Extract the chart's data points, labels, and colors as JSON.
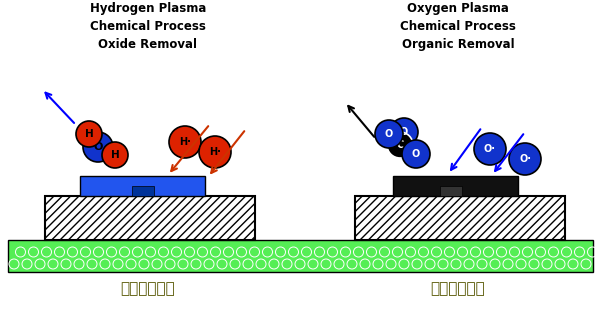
{
  "title_left": "Hydrogen Plasma\nChemical Process\nOxide Removal",
  "title_right": "Oxygen Plasma\nChemical Process\nOrganic Removal",
  "label_bottom_left": "化学清洗工艺",
  "label_bottom_right": "化学清洗工艺",
  "bg_color": "#ffffff",
  "green_color": "#55ee55",
  "blue_atom_color": "#1133cc",
  "red_atom_color": "#dd2200",
  "black_metal_color": "#111111",
  "blue_metal_color": "#2255ee"
}
